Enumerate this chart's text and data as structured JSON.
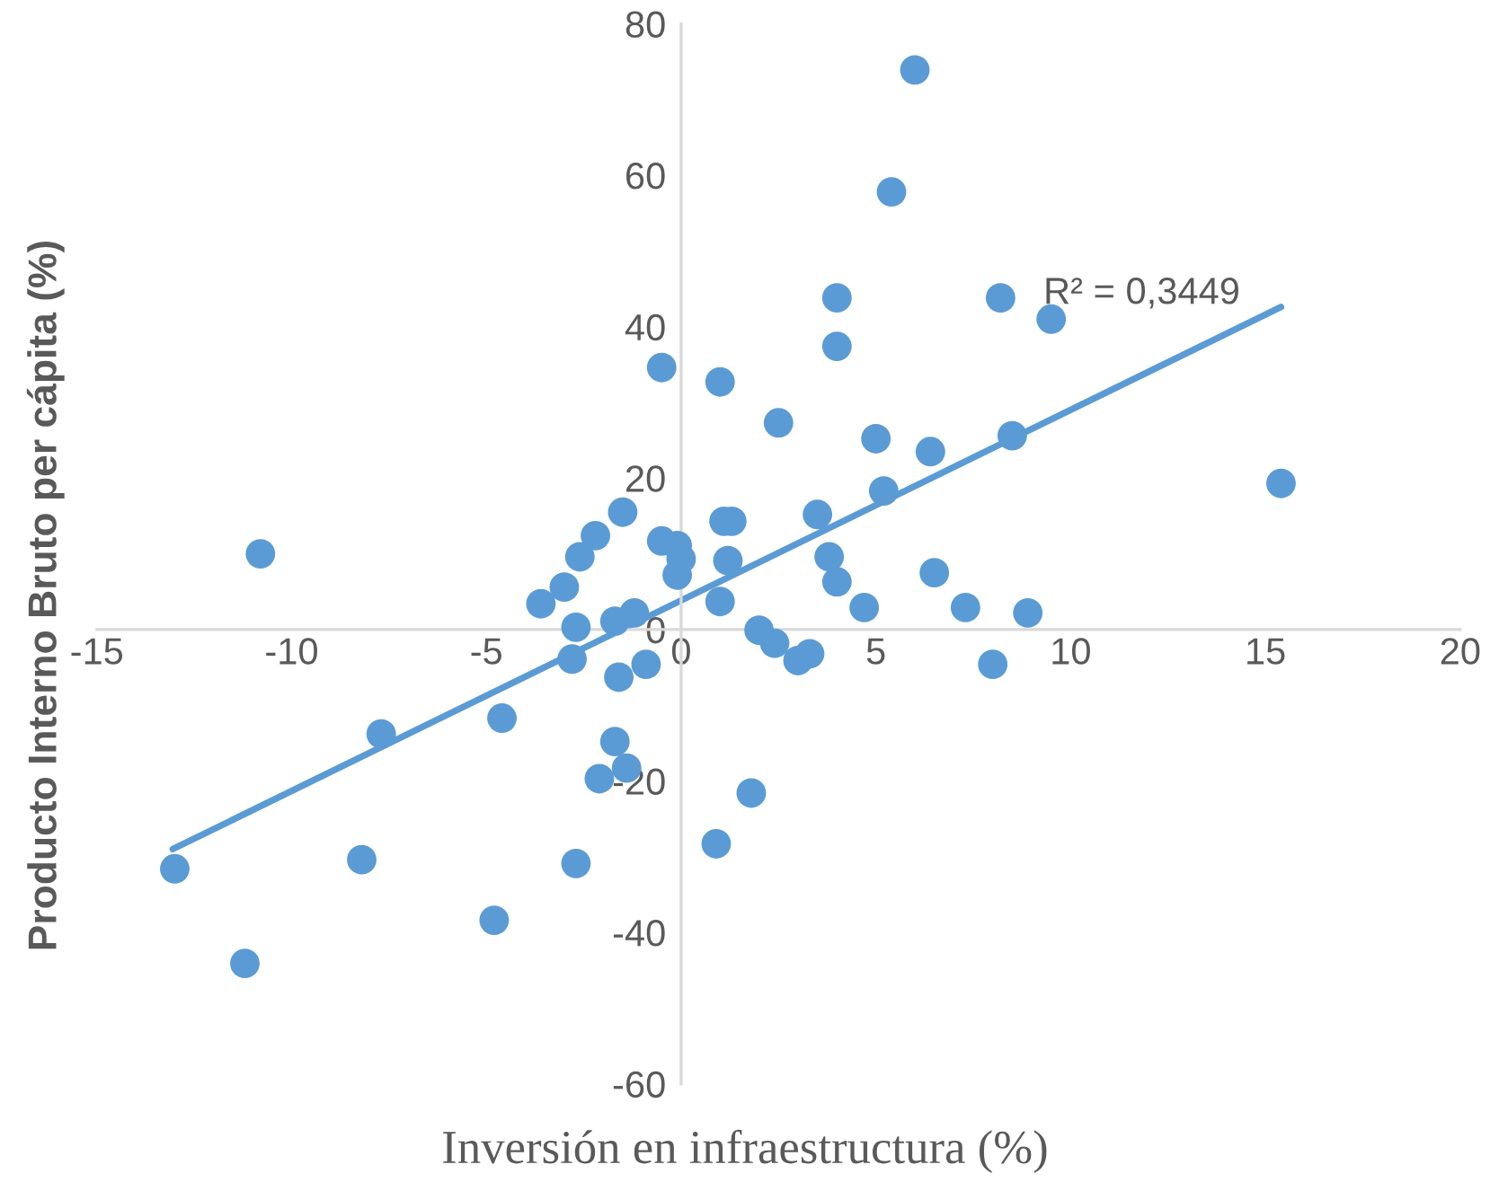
{
  "chart_data": {
    "type": "scatter",
    "xlabel": "Inversión en infraestructura (%)",
    "ylabel": "Producto Interno Bruto per cápita (%)",
    "xlim": [
      -15,
      20
    ],
    "xticks": [
      -15,
      -10,
      -5,
      0,
      5,
      10,
      15,
      20
    ],
    "ylim": [
      -60,
      80
    ],
    "yticks": [
      -60,
      -40,
      -20,
      0,
      20,
      40,
      60,
      80
    ],
    "grid": false,
    "legend": false,
    "series": [
      {
        "color": "#5b9bd5",
        "marker": "circle",
        "x": [
          -10.8,
          -13.0,
          -11.2,
          -8.2,
          -7.7,
          -4.6,
          -4.8,
          -3.6,
          -3.0,
          -2.7,
          -2.8,
          -2.7,
          -2.6,
          -2.2,
          -1.5,
          -2.1,
          -1.7,
          -1.4,
          -1.6,
          -1.7,
          -1.2,
          -0.9,
          -0.5,
          -0.1,
          0.0,
          -0.1,
          -0.5,
          1.0,
          2.5,
          1.1,
          1.3,
          1.2,
          1.0,
          2.0,
          2.4,
          0.9,
          1.8,
          3.0,
          3.3,
          3.8,
          4.0,
          4.7,
          3.5,
          4.0,
          4.0,
          6.0,
          5.4,
          5.0,
          6.4,
          8.5,
          8.2,
          9.5,
          15.4,
          5.2,
          6.5,
          7.3,
          8.9,
          8.0
        ],
        "values": [
          10.0,
          -31.6,
          -44.1,
          -30.4,
          -13.8,
          -11.7,
          -38.4,
          3.4,
          5.6,
          0.3,
          -3.9,
          -30.9,
          9.6,
          12.4,
          15.5,
          -19.7,
          -14.8,
          -18.3,
          -6.3,
          1.1,
          2.2,
          -4.6,
          11.7,
          11.1,
          9.3,
          7.2,
          34.6,
          32.7,
          27.3,
          14.3,
          14.3,
          9.1,
          3.7,
          -0.1,
          -1.8,
          -28.3,
          -21.6,
          -4.1,
          -3.2,
          9.6,
          6.3,
          2.9,
          15.2,
          43.8,
          37.4,
          73.9,
          57.8,
          25.2,
          23.5,
          25.6,
          43.8,
          41.0,
          19.3,
          18.3,
          7.5,
          2.9,
          2.2,
          -4.6
        ]
      },
      {
        "type": "line",
        "color": "#5b9bd5",
        "x": [
          -13.05,
          15.4
        ],
        "values": [
          -29.0,
          42.6
        ],
        "line_style": "solid"
      }
    ],
    "annotations": [
      {
        "text": "R² = 0,3449",
        "x": 9.3,
        "y": 42
      }
    ]
  }
}
